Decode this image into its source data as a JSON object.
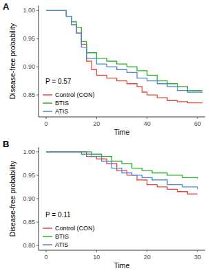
{
  "chart_data": [
    {
      "type": "line",
      "title": "A",
      "annotation": "P = 0.57",
      "x_label": "Time",
      "y_label": "Disease-free probability",
      "xlim": [
        -3,
        63
      ],
      "xticks": [
        0,
        20,
        40,
        60
      ],
      "ylim": [
        0.811,
        1.009
      ],
      "yticks": [
        0.85,
        {
          "value": 0.9,
          "label": "0.90"
        },
        0.95,
        {
          "value": 1,
          "label": "1.00"
        }
      ],
      "grid": false,
      "legend": "bottom-left",
      "line_style": "step",
      "series": [
        {
          "name": "Control (CON)",
          "color": "#E8473E",
          "x": [
            0,
            7,
            8,
            10,
            12,
            14,
            16,
            18,
            20,
            24,
            28,
            32,
            36,
            38,
            40,
            44,
            48,
            52,
            56,
            62
          ],
          "values": [
            1,
            1,
            0.99,
            0.975,
            0.96,
            0.94,
            0.91,
            0.895,
            0.885,
            0.88,
            0.875,
            0.87,
            0.865,
            0.855,
            0.85,
            0.845,
            0.84,
            0.838,
            0.836,
            0.836
          ]
        },
        {
          "name": "BTIS",
          "color": "#2DB02A",
          "x": [
            0,
            6,
            8,
            10,
            12,
            14,
            16,
            20,
            24,
            28,
            32,
            36,
            40,
            44,
            48,
            52,
            56,
            62
          ],
          "values": [
            1,
            1,
            0.99,
            0.98,
            0.97,
            0.945,
            0.925,
            0.915,
            0.91,
            0.905,
            0.9,
            0.893,
            0.885,
            0.875,
            0.87,
            0.865,
            0.858,
            0.858
          ]
        },
        {
          "name": "ATIS",
          "color": "#4A89D8",
          "x": [
            0,
            6,
            8,
            10,
            12,
            14,
            16,
            20,
            24,
            28,
            32,
            36,
            40,
            44,
            48,
            52,
            56,
            62
          ],
          "values": [
            1,
            1,
            0.99,
            0.975,
            0.96,
            0.935,
            0.915,
            0.905,
            0.9,
            0.895,
            0.89,
            0.88,
            0.875,
            0.87,
            0.865,
            0.858,
            0.855,
            0.855
          ]
        }
      ]
    },
    {
      "type": "line",
      "title": "B",
      "annotation": "P = 0.11",
      "x_label": "Time",
      "y_label": "Disease-free probability",
      "xlim": [
        -1.5,
        31.5
      ],
      "xticks": [
        0,
        10,
        20,
        30
      ],
      "ylim": [
        0.79,
        1.01
      ],
      "yticks": [
        {
          "value": 0.8,
          "label": "0.80"
        },
        0.85,
        {
          "value": 0.9,
          "label": "0.90"
        },
        0.95,
        {
          "value": 1,
          "label": "1.00"
        }
      ],
      "grid": false,
      "legend": "bottom-left",
      "line_style": "step",
      "series": [
        {
          "name": "Control (CON)",
          "color": "#E8473E",
          "x": [
            0,
            7,
            8,
            10,
            12,
            14,
            16,
            18,
            20,
            22,
            24,
            26,
            28,
            30
          ],
          "values": [
            1,
            1,
            0.99,
            0.985,
            0.975,
            0.96,
            0.95,
            0.94,
            0.93,
            0.925,
            0.92,
            0.915,
            0.91,
            0.91
          ]
        },
        {
          "name": "BTIS",
          "color": "#2DB02A",
          "x": [
            0,
            9,
            11,
            13,
            15,
            17,
            19,
            21,
            24,
            27,
            30
          ],
          "values": [
            1,
            0.995,
            0.99,
            0.98,
            0.975,
            0.965,
            0.96,
            0.955,
            0.95,
            0.945,
            0.942
          ]
        },
        {
          "name": "ATIS",
          "color": "#4A89D8",
          "x": [
            0,
            7,
            9,
            11,
            13,
            15,
            17,
            19,
            21,
            24,
            27,
            30
          ],
          "values": [
            1,
            0.995,
            0.99,
            0.98,
            0.965,
            0.955,
            0.95,
            0.945,
            0.94,
            0.93,
            0.925,
            0.92
          ]
        }
      ]
    }
  ]
}
